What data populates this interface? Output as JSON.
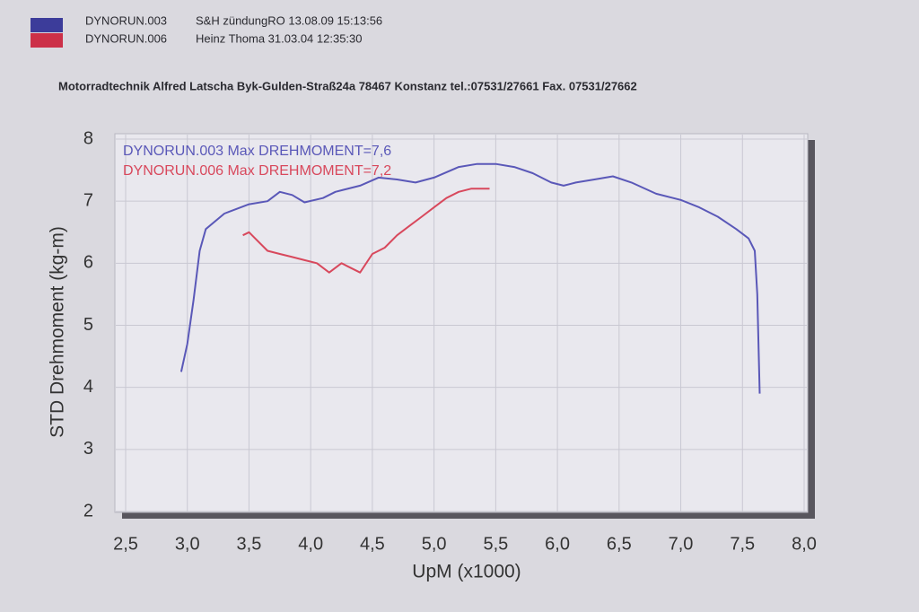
{
  "chart_data": {
    "type": "line",
    "header": [
      {
        "name": "DYNORUN.003",
        "info": "S&H zündungRO  13.08.09 15:13:56"
      },
      {
        "name": "DYNORUN.006",
        "info": "Heinz Thoma 31.03.04 12:35:30"
      }
    ],
    "subtitle": "Motorradtechnik Alfred Latscha   Byk-Gulden-Straß24a 78467 Konstanz  tel.:07531/27661 Fax. 07531/27662",
    "annotations": [
      "DYNORUN.003  Max DREHMOMENT=7,6",
      "DYNORUN.006  Max DREHMOMENT=7,2"
    ],
    "x_label": "UpM (x1000)",
    "y_label": "STD Drehmoment (kg-m)",
    "xlim": [
      2.5,
      8.0
    ],
    "ylim": [
      2,
      8
    ],
    "xticks": [
      {
        "value": 2.5,
        "label": "2,5"
      },
      {
        "value": 3.0,
        "label": "3,0"
      },
      {
        "value": 3.5,
        "label": "3,5"
      },
      {
        "value": 4.0,
        "label": "4,0"
      },
      {
        "value": 4.5,
        "label": "4,5"
      },
      {
        "value": 5.0,
        "label": "5,0"
      },
      {
        "value": 5.5,
        "label": "5,5"
      },
      {
        "value": 6.0,
        "label": "6,0"
      },
      {
        "value": 6.5,
        "label": "6,5"
      },
      {
        "value": 7.0,
        "label": "7,0"
      },
      {
        "value": 7.5,
        "label": "7,5"
      },
      {
        "value": 8.0,
        "label": "8,0"
      }
    ],
    "yticks": [
      2,
      3,
      4,
      5,
      6,
      7,
      8
    ],
    "grid": true,
    "series": [
      {
        "name": "DYNORUN.003",
        "color": "#5a58b8",
        "x": [
          2.95,
          3.0,
          3.05,
          3.1,
          3.15,
          3.3,
          3.5,
          3.65,
          3.75,
          3.85,
          3.95,
          4.1,
          4.2,
          4.4,
          4.55,
          4.7,
          4.85,
          5.0,
          5.2,
          5.35,
          5.5,
          5.65,
          5.8,
          5.95,
          6.05,
          6.15,
          6.3,
          6.45,
          6.6,
          6.8,
          7.0,
          7.15,
          7.3,
          7.45,
          7.55,
          7.6,
          7.62,
          7.64
        ],
        "values": [
          4.25,
          4.7,
          5.4,
          6.2,
          6.55,
          6.8,
          6.95,
          7.0,
          7.15,
          7.1,
          6.98,
          7.05,
          7.15,
          7.25,
          7.38,
          7.35,
          7.3,
          7.38,
          7.55,
          7.6,
          7.6,
          7.55,
          7.45,
          7.3,
          7.25,
          7.3,
          7.35,
          7.4,
          7.3,
          7.12,
          7.02,
          6.9,
          6.75,
          6.55,
          6.4,
          6.2,
          5.5,
          3.9
        ]
      },
      {
        "name": "DYNORUN.006",
        "color": "#d8485c",
        "x": [
          3.45,
          3.5,
          3.55,
          3.65,
          3.75,
          3.85,
          3.95,
          4.05,
          4.15,
          4.25,
          4.3,
          4.4,
          4.5,
          4.6,
          4.7,
          4.8,
          4.9,
          5.0,
          5.1,
          5.2,
          5.3,
          5.45
        ],
        "values": [
          6.45,
          6.5,
          6.4,
          6.2,
          6.15,
          6.1,
          6.05,
          6.0,
          5.85,
          6.0,
          5.95,
          5.85,
          6.15,
          6.25,
          6.45,
          6.6,
          6.75,
          6.9,
          7.05,
          7.15,
          7.2,
          7.2
        ]
      }
    ]
  }
}
